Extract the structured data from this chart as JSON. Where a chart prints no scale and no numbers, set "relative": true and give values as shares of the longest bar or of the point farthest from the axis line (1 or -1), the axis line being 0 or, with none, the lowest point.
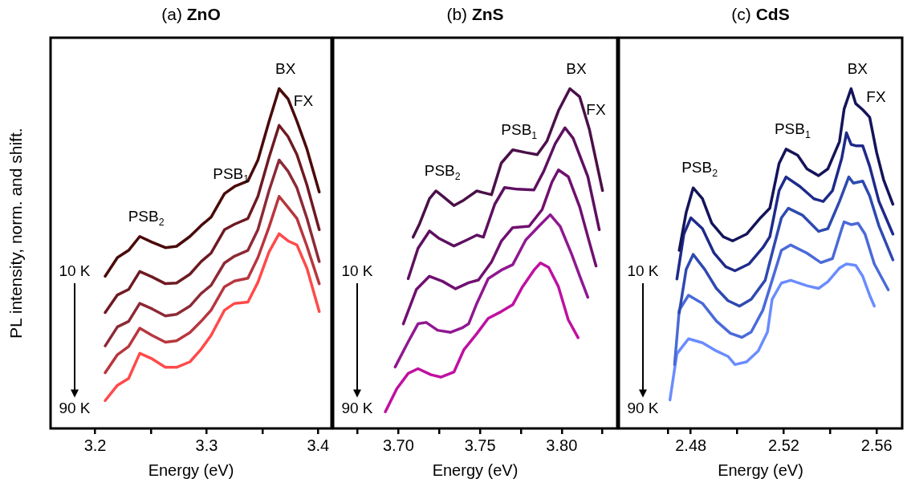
{
  "chart_data": [
    {
      "type": "line",
      "title": "(a) ZnO",
      "xlabel": "Energy (eV)",
      "ylabel": "PL intensity, norm. and shift.",
      "relative": true,
      "xlim": [
        3.16,
        3.412
      ],
      "xticks": [
        3.2,
        {
          "value": 3.25,
          "label": null
        },
        3.3,
        {
          "value": 3.35,
          "label": null
        },
        3.4
      ],
      "x": [
        3.209,
        3.22,
        3.23,
        3.24,
        3.251,
        3.263,
        3.273,
        3.285,
        3.295,
        3.304,
        3.316,
        3.325,
        3.337,
        3.346,
        3.356,
        3.365,
        3.373,
        3.381,
        3.39,
        3.401
      ],
      "series": [
        {
          "color": "#4a0a0a",
          "values": [
            0.448,
            0.503,
            0.524,
            0.565,
            0.548,
            0.532,
            0.536,
            0.565,
            0.597,
            0.622,
            0.691,
            0.712,
            0.728,
            0.79,
            0.904,
            1.0,
            0.97,
            0.904,
            0.822,
            0.696
          ]
        },
        {
          "color": "#6e1a22",
          "values": [
            0.341,
            0.393,
            0.409,
            0.462,
            0.446,
            0.426,
            0.428,
            0.454,
            0.491,
            0.516,
            0.585,
            0.601,
            0.618,
            0.683,
            0.798,
            0.892,
            0.859,
            0.806,
            0.716,
            0.585
          ]
        },
        {
          "color": "#8c2a36",
          "values": [
            0.243,
            0.299,
            0.315,
            0.368,
            0.352,
            0.331,
            0.336,
            0.36,
            0.397,
            0.421,
            0.487,
            0.507,
            0.524,
            0.585,
            0.7,
            0.79,
            0.757,
            0.708,
            0.618,
            0.491
          ]
        },
        {
          "color": "#b8363e",
          "values": [
            0.164,
            0.217,
            0.241,
            0.295,
            0.274,
            0.254,
            0.258,
            0.282,
            0.315,
            0.348,
            0.417,
            0.434,
            0.442,
            0.503,
            0.593,
            0.683,
            0.651,
            0.618,
            0.536,
            0.426
          ]
        },
        {
          "color": "#ff4a4a",
          "values": [
            0.082,
            0.127,
            0.147,
            0.221,
            0.205,
            0.18,
            0.18,
            0.196,
            0.233,
            0.274,
            0.348,
            0.368,
            0.372,
            0.43,
            0.52,
            0.573,
            0.552,
            0.54,
            0.471,
            0.344
          ]
        }
      ],
      "annotations": [
        {
          "text": "PSB$_{2}$",
          "x": 3.24,
          "y": 0.565
        },
        {
          "text": "PSB$_{1}$",
          "x": 3.316,
          "y": 0.691
        },
        {
          "text": "BX",
          "x": 3.365,
          "y": 1.0
        },
        {
          "text": "FX",
          "x": 3.381,
          "y": 0.904
        },
        "10 K",
        "90 K"
      ]
    },
    {
      "type": "line",
      "title": "(b) ZnS",
      "xlabel": "Energy (eV)",
      "relative": true,
      "xlim": [
        3.66,
        3.834
      ],
      "xticks": [
        {
          "value": 3.675,
          "label": null
        },
        {
          "value": 3.7,
          "label": "3.70"
        },
        {
          "value": 3.725,
          "label": null
        },
        {
          "value": 3.75,
          "label": "3.75"
        },
        {
          "value": 3.775,
          "label": null
        },
        {
          "value": 3.8,
          "label": "3.80"
        },
        {
          "value": 3.825,
          "label": null
        }
      ],
      "series": [
        {
          "color": "#4a1048",
          "x": [
            3.709,
            3.713,
            3.719,
            3.723,
            3.727,
            3.734,
            3.74,
            3.748,
            3.752,
            3.757,
            3.763,
            3.77,
            3.778,
            3.785,
            3.791,
            3.798,
            3.805,
            3.811,
            3.817,
            3.825
          ],
          "values": [
            0.563,
            0.603,
            0.676,
            0.699,
            0.684,
            0.656,
            0.672,
            0.699,
            0.694,
            0.688,
            0.781,
            0.82,
            0.812,
            0.806,
            0.846,
            0.935,
            1.0,
            0.976,
            0.879,
            0.7
          ]
        },
        {
          "color": "#5e1060",
          "x": [
            3.706,
            3.712,
            3.719,
            3.725,
            3.734,
            3.742,
            3.748,
            3.752,
            3.759,
            3.765,
            3.773,
            3.783,
            3.789,
            3.796,
            3.802,
            3.807,
            3.816,
            3.823
          ],
          "values": [
            0.441,
            0.53,
            0.581,
            0.559,
            0.537,
            0.555,
            0.569,
            0.563,
            0.66,
            0.709,
            0.704,
            0.702,
            0.757,
            0.838,
            0.885,
            0.854,
            0.741,
            0.585
          ]
        },
        {
          "color": "#701070",
          "x": [
            3.703,
            3.711,
            3.719,
            3.727,
            3.735,
            3.743,
            3.749,
            3.757,
            3.763,
            3.77,
            3.78,
            3.788,
            3.794,
            3.798,
            3.804,
            3.811,
            3.817,
            3.821
          ],
          "values": [
            0.308,
            0.409,
            0.448,
            0.433,
            0.411,
            0.429,
            0.437,
            0.49,
            0.551,
            0.591,
            0.595,
            0.644,
            0.725,
            0.761,
            0.741,
            0.652,
            0.547,
            0.478
          ]
        },
        {
          "color": "#901890",
          "x": [
            3.698,
            3.706,
            3.712,
            3.717,
            3.724,
            3.732,
            3.739,
            3.743,
            3.748,
            3.755,
            3.763,
            3.77,
            3.778,
            3.786,
            3.793,
            3.799,
            3.806,
            3.811,
            3.816
          ],
          "values": [
            0.181,
            0.255,
            0.308,
            0.312,
            0.289,
            0.283,
            0.296,
            0.308,
            0.368,
            0.441,
            0.466,
            0.482,
            0.555,
            0.595,
            0.629,
            0.595,
            0.514,
            0.449,
            0.386
          ]
        },
        {
          "color": "#c010a0",
          "x": [
            3.692,
            3.699,
            3.706,
            3.712,
            3.72,
            3.726,
            3.734,
            3.74,
            3.748,
            3.755,
            3.763,
            3.77,
            3.776,
            3.783,
            3.787,
            3.792,
            3.798,
            3.804,
            3.81
          ],
          "values": [
            0.049,
            0.117,
            0.162,
            0.176,
            0.158,
            0.151,
            0.166,
            0.231,
            0.279,
            0.324,
            0.344,
            0.364,
            0.417,
            0.466,
            0.487,
            0.474,
            0.417,
            0.32,
            0.267
          ]
        }
      ],
      "annotations": [
        {
          "text": "PSB$_{2}$",
          "x": 3.723,
          "y": 0.699
        },
        {
          "text": "PSB$_{1}$",
          "x": 3.77,
          "y": 0.82
        },
        {
          "text": "BX",
          "x": 3.805,
          "y": 1.0
        },
        {
          "text": "FX",
          "x": 3.817,
          "y": 0.879
        },
        "10 K",
        "90 K"
      ]
    },
    {
      "type": "line",
      "title": "(c) CdS",
      "xlabel": "Energy (eV)",
      "relative": true,
      "xlim": [
        2.449,
        2.571
      ],
      "xticks": [
        {
          "value": 2.47,
          "label": null
        },
        2.48,
        {
          "value": 2.5,
          "label": null
        },
        2.52,
        {
          "value": 2.54,
          "label": null
        },
        2.56
      ],
      "series": [
        {
          "color": "#14145a",
          "x": [
            2.475,
            2.478,
            2.481,
            2.485,
            2.489,
            2.494,
            2.498,
            2.504,
            2.51,
            2.514,
            2.518,
            2.521,
            2.526,
            2.53,
            2.535,
            2.539,
            2.544,
            2.546,
            2.549,
            2.551,
            2.554,
            2.557,
            2.56,
            2.563,
            2.567
          ],
          "values": [
            0.524,
            0.636,
            0.708,
            0.676,
            0.604,
            0.564,
            0.552,
            0.572,
            0.62,
            0.648,
            0.78,
            0.822,
            0.804,
            0.764,
            0.744,
            0.764,
            0.844,
            0.94,
            1.0,
            0.956,
            0.938,
            0.916,
            0.812,
            0.732,
            0.66
          ]
        },
        {
          "color": "#1e2a8a",
          "x": [
            2.474,
            2.477,
            2.48,
            2.485,
            2.49,
            2.495,
            2.499,
            2.505,
            2.511,
            2.514,
            2.518,
            2.521,
            2.527,
            2.533,
            2.537,
            2.541,
            2.545,
            2.547,
            2.549,
            2.551,
            2.554,
            2.557,
            2.561,
            2.567
          ],
          "values": [
            0.44,
            0.572,
            0.62,
            0.588,
            0.516,
            0.476,
            0.464,
            0.484,
            0.532,
            0.564,
            0.7,
            0.74,
            0.712,
            0.676,
            0.668,
            0.7,
            0.796,
            0.87,
            0.836,
            0.832,
            0.832,
            0.772,
            0.668,
            0.572
          ]
        },
        {
          "color": "#2e4ab0",
          "x": [
            2.475,
            2.478,
            2.481,
            2.486,
            2.491,
            2.496,
            2.501,
            2.506,
            2.512,
            2.515,
            2.519,
            2.522,
            2.528,
            2.535,
            2.539,
            2.544,
            2.548,
            2.55,
            2.554,
            2.557,
            2.561,
            2.567
          ],
          "values": [
            0.34,
            0.468,
            0.512,
            0.468,
            0.412,
            0.376,
            0.36,
            0.38,
            0.436,
            0.516,
            0.62,
            0.648,
            0.628,
            0.58,
            0.588,
            0.668,
            0.74,
            0.722,
            0.728,
            0.684,
            0.596,
            0.496
          ]
        },
        {
          "color": "#4a6ad8",
          "x": [
            2.473,
            2.475,
            2.479,
            2.485,
            2.491,
            2.497,
            2.502,
            2.506,
            2.511,
            2.515,
            2.519,
            2.523,
            2.53,
            2.536,
            2.541,
            2.545,
            2.546,
            2.549,
            2.552,
            2.555,
            2.559,
            2.565
          ],
          "values": [
            0.188,
            0.348,
            0.392,
            0.368,
            0.316,
            0.28,
            0.268,
            0.284,
            0.348,
            0.436,
            0.524,
            0.54,
            0.516,
            0.488,
            0.5,
            0.588,
            0.608,
            0.6,
            0.604,
            0.572,
            0.484,
            0.408
          ]
        },
        {
          "color": "#6a8cff",
          "x": [
            2.471,
            2.474,
            2.479,
            2.485,
            2.491,
            2.496,
            2.499,
            2.504,
            2.509,
            2.513,
            2.515,
            2.519,
            2.523,
            2.53,
            2.535,
            2.539,
            2.544,
            2.547,
            2.551,
            2.554,
            2.557,
            2.559
          ],
          "values": [
            0.084,
            0.22,
            0.264,
            0.252,
            0.228,
            0.212,
            0.188,
            0.196,
            0.228,
            0.284,
            0.38,
            0.428,
            0.436,
            0.42,
            0.412,
            0.432,
            0.472,
            0.484,
            0.48,
            0.448,
            0.392,
            0.36
          ]
        }
      ],
      "annotations": [
        {
          "text": "PSB$_{2}$",
          "x": 2.481,
          "y": 0.708
        },
        {
          "text": "PSB$_{1}$",
          "x": 2.521,
          "y": 0.822
        },
        {
          "text": "BX",
          "x": 2.549,
          "y": 1.0
        },
        {
          "text": "FX",
          "x": 2.557,
          "y": 0.916
        },
        "10 K",
        "90 K"
      ]
    }
  ]
}
